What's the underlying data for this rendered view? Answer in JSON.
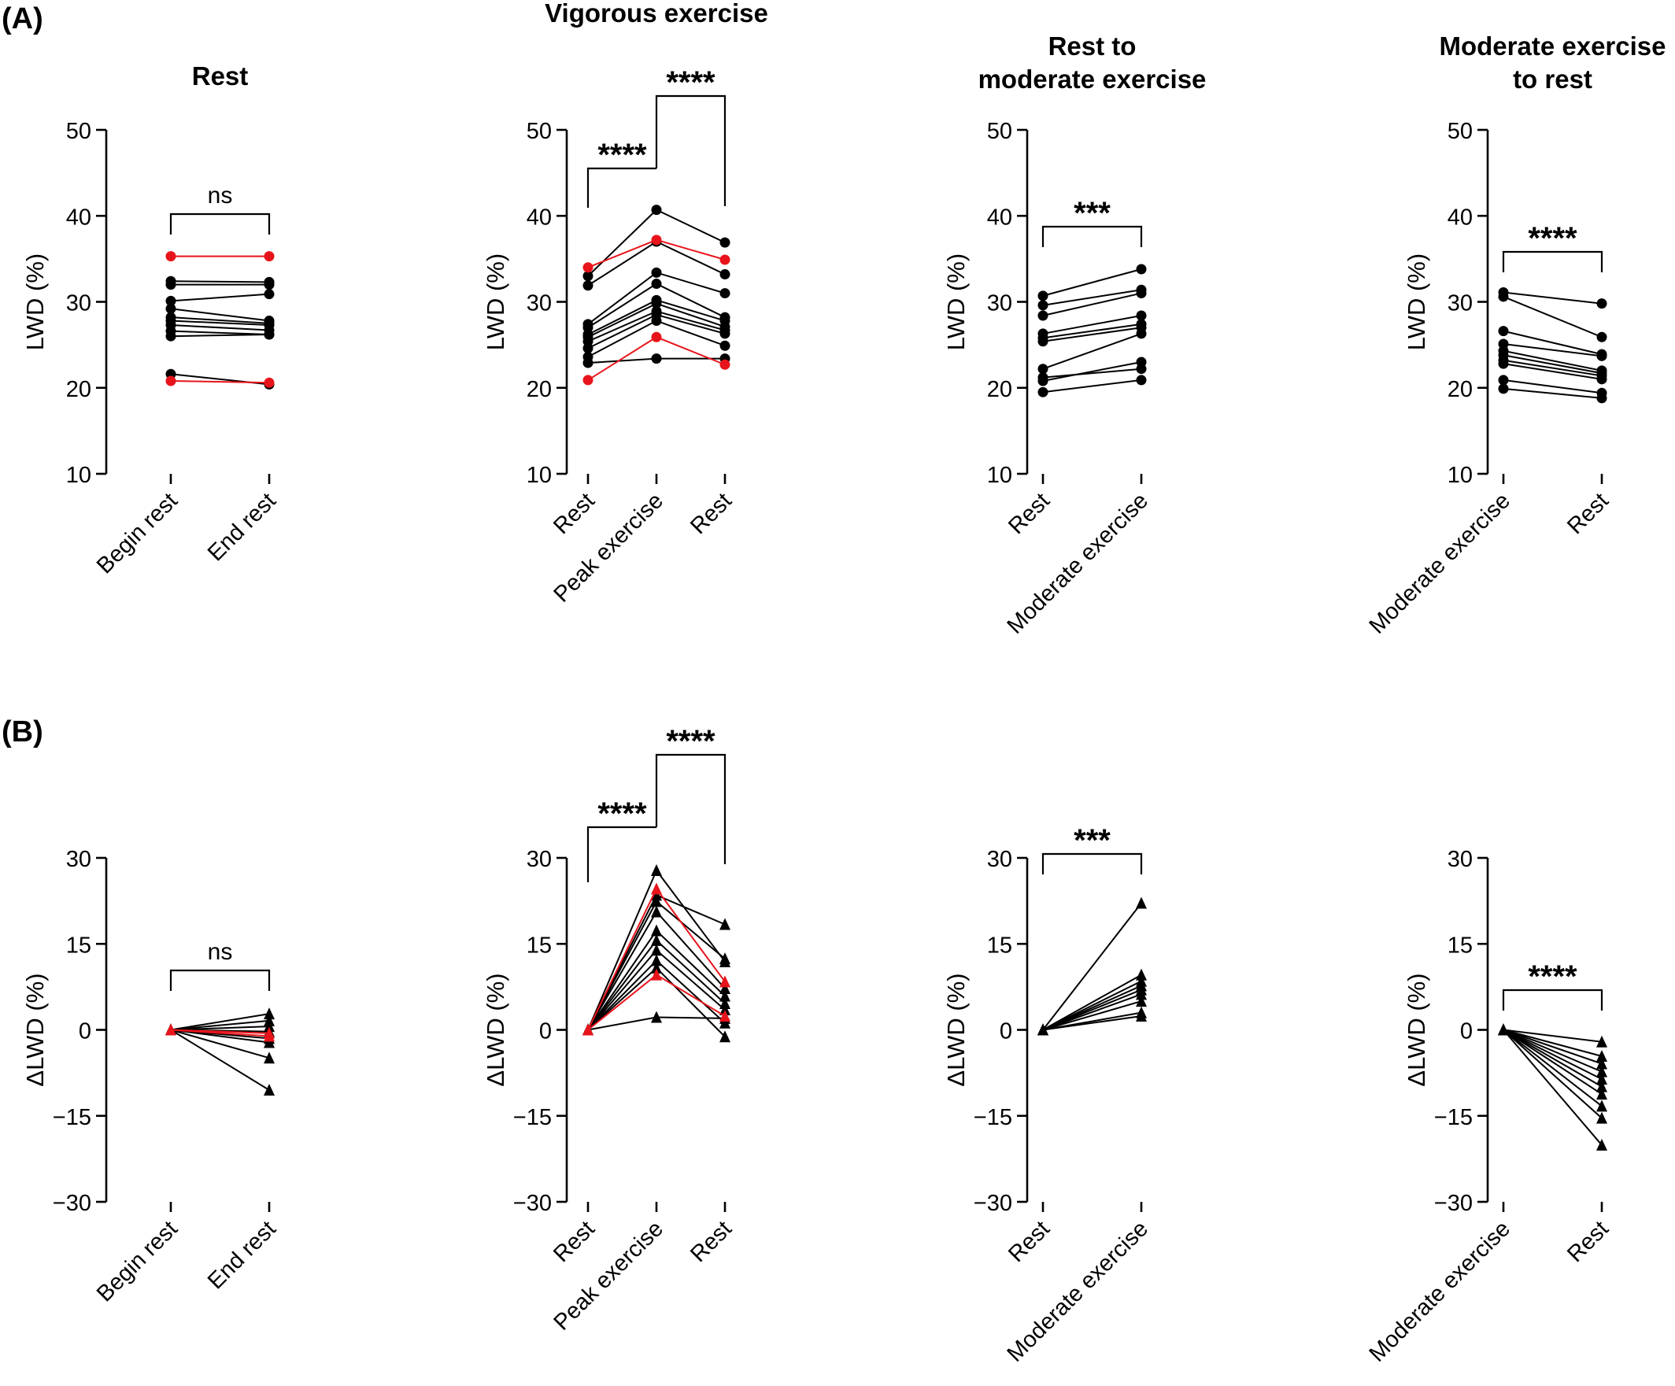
{
  "figure": {
    "panel_labels": [
      "(A)",
      "(B)"
    ]
  },
  "chart_data": [
    {
      "type": "line",
      "row": "A",
      "title": "Rest",
      "ylabel": "LWD (%)",
      "categories": [
        "Begin rest",
        "End rest"
      ],
      "ylim": [
        10,
        50
      ],
      "yticks": [
        10,
        20,
        30,
        40,
        50
      ],
      "marker": "circle",
      "significance": [
        {
          "from": 0,
          "to": 1,
          "label": "ns"
        }
      ],
      "series": [
        {
          "color": "#e8141b",
          "values": [
            35.3,
            35.3
          ]
        },
        {
          "color": "#e8141b",
          "values": [
            20.8,
            20.6
          ]
        },
        {
          "color": "#000000",
          "values": [
            32.4,
            32.3
          ]
        },
        {
          "color": "#000000",
          "values": [
            32.0,
            32.0
          ]
        },
        {
          "color": "#000000",
          "values": [
            30.1,
            30.9
          ]
        },
        {
          "color": "#000000",
          "values": [
            29.2,
            27.8
          ]
        },
        {
          "color": "#000000",
          "values": [
            28.2,
            27.5
          ]
        },
        {
          "color": "#000000",
          "values": [
            27.8,
            27.3
          ]
        },
        {
          "color": "#000000",
          "values": [
            27.3,
            26.7
          ]
        },
        {
          "color": "#000000",
          "values": [
            26.6,
            26.2
          ]
        },
        {
          "color": "#000000",
          "values": [
            26.0,
            26.2
          ]
        },
        {
          "color": "#000000",
          "values": [
            21.6,
            20.4
          ]
        }
      ]
    },
    {
      "type": "line",
      "row": "A",
      "title": "Vigorous exercise",
      "ylabel": "LWD (%)",
      "categories": [
        "Rest",
        "Peak exercise",
        "Rest"
      ],
      "ylim": [
        10,
        50
      ],
      "yticks": [
        10,
        20,
        30,
        40,
        50
      ],
      "marker": "circle",
      "significance": [
        {
          "from": 0,
          "to": 1,
          "label": "****"
        },
        {
          "from": 1,
          "to": 2,
          "label": "****"
        }
      ],
      "series": [
        {
          "color": "#e8141b",
          "values": [
            34.0,
            37.2,
            34.9
          ]
        },
        {
          "color": "#e8141b",
          "values": [
            20.9,
            25.9,
            22.7
          ]
        },
        {
          "color": "#000000",
          "values": [
            33.0,
            40.7,
            36.9
          ]
        },
        {
          "color": "#000000",
          "values": [
            31.9,
            37.0,
            33.2
          ]
        },
        {
          "color": "#000000",
          "values": [
            27.4,
            33.4,
            31.0
          ]
        },
        {
          "color": "#000000",
          "values": [
            27.0,
            32.1,
            28.2
          ]
        },
        {
          "color": "#000000",
          "values": [
            26.2,
            30.2,
            27.8
          ]
        },
        {
          "color": "#000000",
          "values": [
            25.9,
            29.8,
            27.1
          ]
        },
        {
          "color": "#000000",
          "values": [
            25.4,
            28.9,
            26.7
          ]
        },
        {
          "color": "#000000",
          "values": [
            24.6,
            28.5,
            26.3
          ]
        },
        {
          "color": "#000000",
          "values": [
            23.6,
            27.8,
            24.9
          ]
        },
        {
          "color": "#000000",
          "values": [
            22.9,
            23.4,
            23.4
          ]
        }
      ]
    },
    {
      "type": "line",
      "row": "A",
      "title": "Rest to moderate exercise",
      "title_lines": [
        "Rest to",
        "moderate exercise"
      ],
      "ylabel": "LWD (%)",
      "categories": [
        "Rest",
        "Moderate exercise"
      ],
      "ylim": [
        10,
        50
      ],
      "yticks": [
        10,
        20,
        30,
        40,
        50
      ],
      "marker": "circle",
      "significance": [
        {
          "from": 0,
          "to": 1,
          "label": "***"
        }
      ],
      "series": [
        {
          "color": "#000000",
          "values": [
            30.7,
            33.8
          ]
        },
        {
          "color": "#000000",
          "values": [
            29.6,
            31.4
          ]
        },
        {
          "color": "#000000",
          "values": [
            28.4,
            31.0
          ]
        },
        {
          "color": "#000000",
          "values": [
            26.3,
            28.4
          ]
        },
        {
          "color": "#000000",
          "values": [
            25.8,
            27.4
          ]
        },
        {
          "color": "#000000",
          "values": [
            25.4,
            27.0
          ]
        },
        {
          "color": "#000000",
          "values": [
            22.2,
            26.3
          ]
        },
        {
          "color": "#000000",
          "values": [
            20.8,
            23.0
          ]
        },
        {
          "color": "#000000",
          "values": [
            19.5,
            20.9
          ]
        },
        {
          "color": "#000000",
          "values": [
            21.2,
            22.2
          ]
        }
      ]
    },
    {
      "type": "line",
      "row": "A",
      "title": "Moderate exercise to rest",
      "title_lines": [
        "Moderate exercise",
        "to rest"
      ],
      "ylabel": "LWD (%)",
      "categories": [
        "Moderate exercise",
        "Rest"
      ],
      "ylim": [
        10,
        50
      ],
      "yticks": [
        10,
        20,
        30,
        40,
        50
      ],
      "marker": "circle",
      "significance": [
        {
          "from": 0,
          "to": 1,
          "label": "****"
        }
      ],
      "series": [
        {
          "color": "#000000",
          "values": [
            31.1,
            29.8
          ]
        },
        {
          "color": "#000000",
          "values": [
            30.6,
            25.9
          ]
        },
        {
          "color": "#000000",
          "values": [
            26.6,
            23.9
          ]
        },
        {
          "color": "#000000",
          "values": [
            25.1,
            23.7
          ]
        },
        {
          "color": "#000000",
          "values": [
            24.3,
            22.0
          ]
        },
        {
          "color": "#000000",
          "values": [
            23.8,
            21.7
          ]
        },
        {
          "color": "#000000",
          "values": [
            23.2,
            21.4
          ]
        },
        {
          "color": "#000000",
          "values": [
            22.8,
            21.0
          ]
        },
        {
          "color": "#000000",
          "values": [
            20.9,
            19.4
          ]
        },
        {
          "color": "#000000",
          "values": [
            19.9,
            18.8
          ]
        }
      ]
    },
    {
      "type": "line",
      "row": "B",
      "title": "",
      "ylabel": "ΔLWD (%)",
      "categories": [
        "Begin rest",
        "End rest"
      ],
      "ylim": [
        -30,
        30
      ],
      "yticks": [
        -30,
        -15,
        0,
        15,
        30
      ],
      "marker": "triangle",
      "significance": [
        {
          "from": 0,
          "to": 1,
          "label": "ns"
        }
      ],
      "series": [
        {
          "color": "#000000",
          "values": [
            0,
            2.8
          ]
        },
        {
          "color": "#000000",
          "values": [
            0,
            1.6
          ]
        },
        {
          "color": "#000000",
          "values": [
            0,
            0.6
          ]
        },
        {
          "color": "#000000",
          "values": [
            0,
            -0.3
          ]
        },
        {
          "color": "#000000",
          "values": [
            0,
            -1.5
          ]
        },
        {
          "color": "#000000",
          "values": [
            0,
            -2.2
          ]
        },
        {
          "color": "#000000",
          "values": [
            0,
            -4.9
          ]
        },
        {
          "color": "#000000",
          "values": [
            0,
            -10.5
          ]
        },
        {
          "color": "#e8141b",
          "values": [
            0,
            -0.6
          ]
        },
        {
          "color": "#e8141b",
          "values": [
            0,
            -1.1
          ]
        }
      ]
    },
    {
      "type": "line",
      "row": "B",
      "title": "",
      "ylabel": "ΔLWD (%)",
      "categories": [
        "Rest",
        "Peak exercise",
        "Rest"
      ],
      "ylim": [
        -30,
        30
      ],
      "yticks": [
        -30,
        -15,
        0,
        15,
        30
      ],
      "marker": "triangle",
      "significance": [
        {
          "from": 0,
          "to": 1,
          "label": "****"
        },
        {
          "from": 1,
          "to": 2,
          "label": "****"
        }
      ],
      "series": [
        {
          "color": "#000000",
          "values": [
            0,
            27.8,
            11.9
          ]
        },
        {
          "color": "#000000",
          "values": [
            0,
            23.5,
            18.4
          ]
        },
        {
          "color": "#000000",
          "values": [
            0,
            22.4,
            12.4
          ]
        },
        {
          "color": "#000000",
          "values": [
            0,
            20.6,
            7.2
          ]
        },
        {
          "color": "#000000",
          "values": [
            0,
            17.3,
            5.9
          ]
        },
        {
          "color": "#000000",
          "values": [
            0,
            15.6,
            4.6
          ]
        },
        {
          "color": "#000000",
          "values": [
            0,
            13.9,
            3.5
          ]
        },
        {
          "color": "#000000",
          "values": [
            0,
            12.1,
            1.2
          ]
        },
        {
          "color": "#000000",
          "values": [
            0,
            10.8,
            -1.2
          ]
        },
        {
          "color": "#000000",
          "values": [
            0,
            2.2,
            2.0
          ]
        },
        {
          "color": "#e8141b",
          "values": [
            0,
            24.6,
            8.4
          ]
        },
        {
          "color": "#e8141b",
          "values": [
            0,
            9.6,
            2.4
          ]
        }
      ]
    },
    {
      "type": "line",
      "row": "B",
      "title": "",
      "ylabel": "ΔLWD (%)",
      "categories": [
        "Rest",
        "Moderate exercise"
      ],
      "ylim": [
        -30,
        30
      ],
      "yticks": [
        -30,
        -15,
        0,
        15,
        30
      ],
      "marker": "triangle",
      "significance": [
        {
          "from": 0,
          "to": 1,
          "label": "***"
        }
      ],
      "series": [
        {
          "color": "#000000",
          "values": [
            0,
            22.1
          ]
        },
        {
          "color": "#000000",
          "values": [
            0,
            9.6
          ]
        },
        {
          "color": "#000000",
          "values": [
            0,
            8.5
          ]
        },
        {
          "color": "#000000",
          "values": [
            0,
            7.7
          ]
        },
        {
          "color": "#000000",
          "values": [
            0,
            7.0
          ]
        },
        {
          "color": "#000000",
          "values": [
            0,
            6.2
          ]
        },
        {
          "color": "#000000",
          "values": [
            0,
            5.0
          ]
        },
        {
          "color": "#000000",
          "values": [
            0,
            3.0
          ]
        },
        {
          "color": "#000000",
          "values": [
            0,
            2.4
          ]
        }
      ]
    },
    {
      "type": "line",
      "row": "B",
      "title": "",
      "ylabel": "ΔLWD (%)",
      "categories": [
        "Moderate exercise",
        "Rest"
      ],
      "ylim": [
        -30,
        30
      ],
      "yticks": [
        -30,
        -15,
        0,
        15,
        30
      ],
      "marker": "triangle",
      "significance": [
        {
          "from": 0,
          "to": 1,
          "label": "****"
        }
      ],
      "series": [
        {
          "color": "#000000",
          "values": [
            0,
            -2.1
          ]
        },
        {
          "color": "#000000",
          "values": [
            0,
            -4.6
          ]
        },
        {
          "color": "#000000",
          "values": [
            0,
            -5.9
          ]
        },
        {
          "color": "#000000",
          "values": [
            0,
            -7.3
          ]
        },
        {
          "color": "#000000",
          "values": [
            0,
            -8.6
          ]
        },
        {
          "color": "#000000",
          "values": [
            0,
            -9.9
          ]
        },
        {
          "color": "#000000",
          "values": [
            0,
            -11.2
          ]
        },
        {
          "color": "#000000",
          "values": [
            0,
            -13.3
          ]
        },
        {
          "color": "#000000",
          "values": [
            0,
            -15.4
          ]
        },
        {
          "color": "#000000",
          "values": [
            0,
            -20.1
          ]
        }
      ]
    }
  ]
}
